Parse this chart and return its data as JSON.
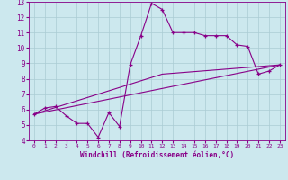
{
  "xlabel": "Windchill (Refroidissement éolien,°C)",
  "xlim": [
    -0.5,
    23.5
  ],
  "ylim": [
    4,
    13
  ],
  "xticks": [
    0,
    1,
    2,
    3,
    4,
    5,
    6,
    7,
    8,
    9,
    10,
    11,
    12,
    13,
    14,
    15,
    16,
    17,
    18,
    19,
    20,
    21,
    22,
    23
  ],
  "yticks": [
    4,
    5,
    6,
    7,
    8,
    9,
    10,
    11,
    12,
    13
  ],
  "bg_color": "#cce8ee",
  "line_color": "#880088",
  "grid_color": "#aaccd4",
  "line1_x": [
    0,
    1,
    2,
    3,
    4,
    5,
    6,
    7,
    8,
    9,
    10,
    11,
    12,
    13,
    14,
    15,
    16,
    17,
    18,
    19,
    20,
    21,
    22,
    23
  ],
  "line1_y": [
    5.7,
    6.1,
    6.2,
    5.6,
    5.1,
    5.1,
    4.2,
    5.8,
    4.9,
    8.9,
    10.8,
    12.9,
    12.5,
    11.0,
    11.0,
    11.0,
    10.8,
    10.8,
    10.8,
    10.2,
    10.1,
    8.3,
    8.5,
    8.9
  ],
  "line2_x": [
    0,
    23
  ],
  "line2_y": [
    5.7,
    8.9
  ],
  "line3_x": [
    0,
    12,
    23
  ],
  "line3_y": [
    5.7,
    8.3,
    8.9
  ],
  "xlabel_fontsize": 5.5,
  "tick_fontsize_x": 4.5,
  "tick_fontsize_y": 5.5
}
